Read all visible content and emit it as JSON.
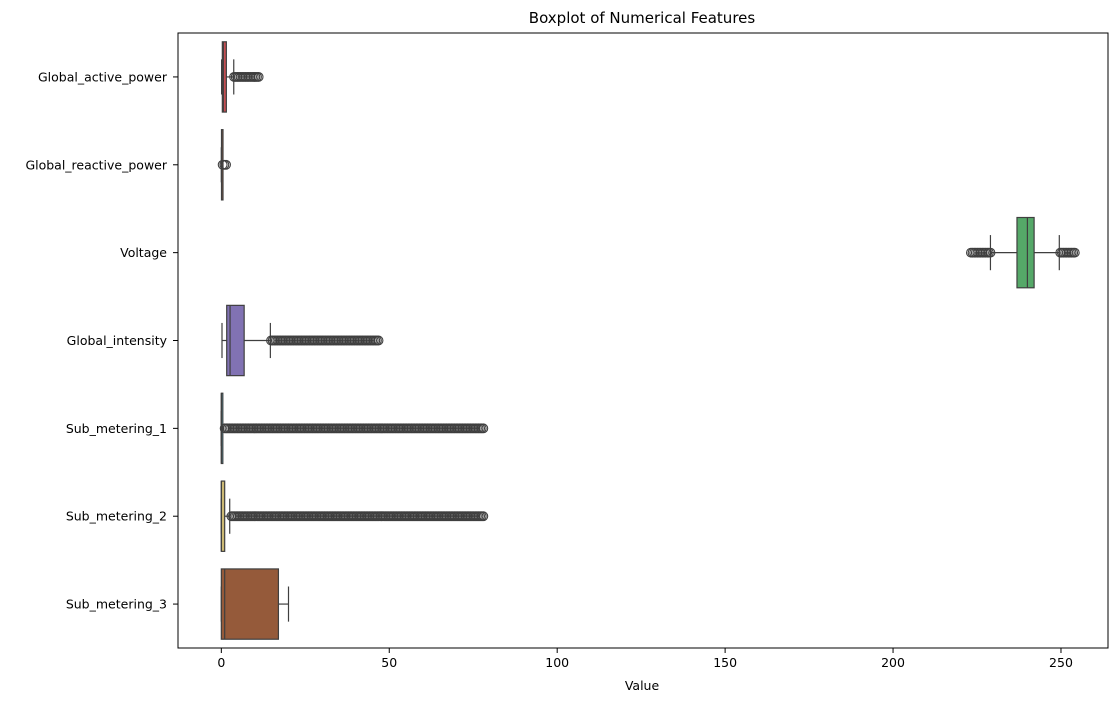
{
  "chart_data": {
    "type": "boxplot",
    "orientation": "horizontal",
    "title": "Boxplot of Numerical Features",
    "xlabel": "Value",
    "ylabel": "",
    "xlim": [
      -12.9,
      264
    ],
    "xticks": [
      0,
      50,
      100,
      150,
      200,
      250
    ],
    "grid": false,
    "legend": "none",
    "series": [
      {
        "name": "Global_active_power",
        "color": "#c44e52",
        "whisker_low": 0.08,
        "q1": 0.3,
        "median": 0.6,
        "q3": 1.5,
        "whisker_high": 3.7,
        "outliers_high": [
          3.8,
          11.1
        ]
      },
      {
        "name": "Global_reactive_power",
        "color": "#dd8452",
        "whisker_low": 0.0,
        "q1": 0.05,
        "median": 0.1,
        "q3": 0.2,
        "whisker_high": 0.4,
        "outliers_high": [
          0.4,
          1.4
        ]
      },
      {
        "name": "Voltage",
        "color": "#55a868",
        "whisker_low": 229,
        "q1": 236.9,
        "median": 240,
        "q3": 242,
        "whisker_high": 249.5,
        "outliers_low": [
          223.2,
          229
        ],
        "outliers_high": [
          249.8,
          254.1
        ]
      },
      {
        "name": "Global_intensity",
        "color": "#8172b3",
        "whisker_low": 0.2,
        "q1": 1.6,
        "median": 2.6,
        "q3": 6.8,
        "whisker_high": 14.6,
        "outliers_high": [
          14.8,
          46.8
        ]
      },
      {
        "name": "Sub_metering_1",
        "color": "#64b5cd",
        "whisker_low": 0,
        "q1": 0,
        "median": 0,
        "q3": 0,
        "whisker_high": 0,
        "outliers_high": [
          1,
          78
        ]
      },
      {
        "name": "Sub_metering_2",
        "color": "#ccb974",
        "whisker_low": 0,
        "q1": 0,
        "median": 0,
        "q3": 1,
        "whisker_high": 2.5,
        "outliers_high": [
          3,
          78
        ]
      },
      {
        "name": "Sub_metering_3",
        "color": "#955a3a",
        "whisker_low": 0,
        "q1": 0,
        "median": 1,
        "q3": 17,
        "whisker_high": 20,
        "outliers_high": []
      }
    ]
  }
}
